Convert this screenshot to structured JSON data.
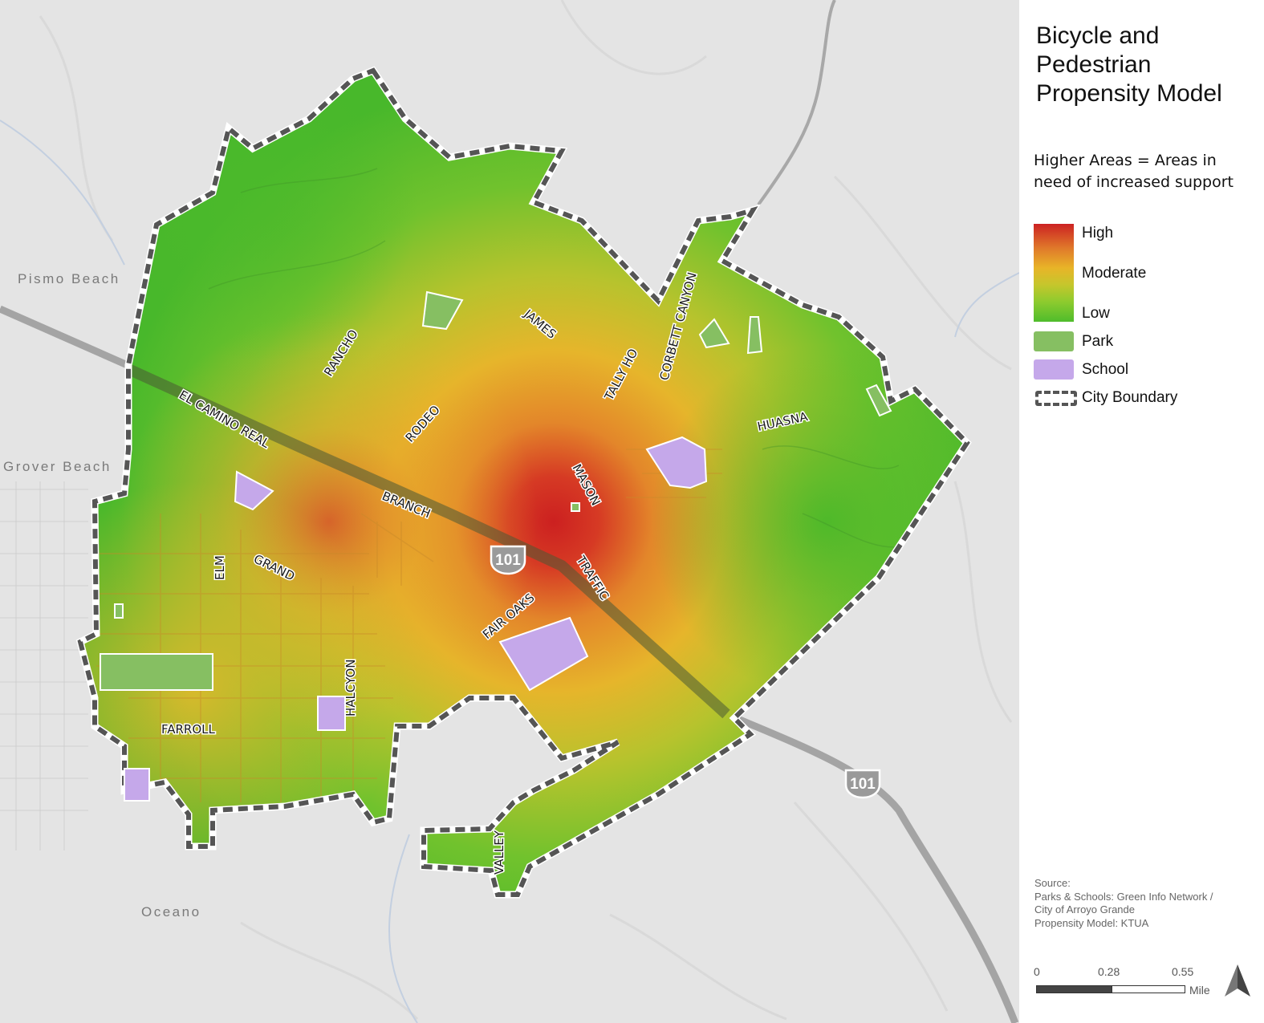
{
  "map": {
    "places": {
      "pismo": "Pismo Beach",
      "grover": "Grover Beach",
      "oceano": "Oceano"
    },
    "shields": [
      "101",
      "101"
    ],
    "streets": {
      "el_camino": "EL CAMINO REAL",
      "branch": "BRANCH",
      "grand": "GRAND",
      "elm": "ELM",
      "rancho": "RANCHO",
      "rodeo": "RODEO",
      "james": "JAMES",
      "tally_ho": "TALLY HO",
      "corbett": "CORBETT CANYON",
      "huasna": "HUASNA",
      "mason": "MASON",
      "traffic": "TRAFFIC",
      "fair_oaks": "FAIR OAKS",
      "halcyon": "HALCYON",
      "farroll": "FARROLL",
      "valley": "VALLEY"
    },
    "colors": {
      "high": "#cc2222",
      "moderate": "#e8b428",
      "low": "#4fbc2c",
      "park": "#86bf62",
      "school": "#c5a8ea",
      "boundary": "#555555"
    }
  },
  "legend": {
    "title": "Bicycle and Pedestrian Propensity Model",
    "subtitle": "Higher Areas = Areas in need of increased support",
    "ramp": {
      "high": "High",
      "moderate": "Moderate",
      "low": "Low"
    },
    "park": "Park",
    "school": "School",
    "boundary": "City Boundary"
  },
  "source": {
    "heading": "Source:",
    "line1": "Parks & Schools: Green Info Network /",
    "line2": "City of Arroyo Grande",
    "line3": "Propensity Model: KTUA"
  },
  "scale": {
    "tick0": "0",
    "tick1": "0.28",
    "tick2": "0.55",
    "unit": "Mile"
  }
}
